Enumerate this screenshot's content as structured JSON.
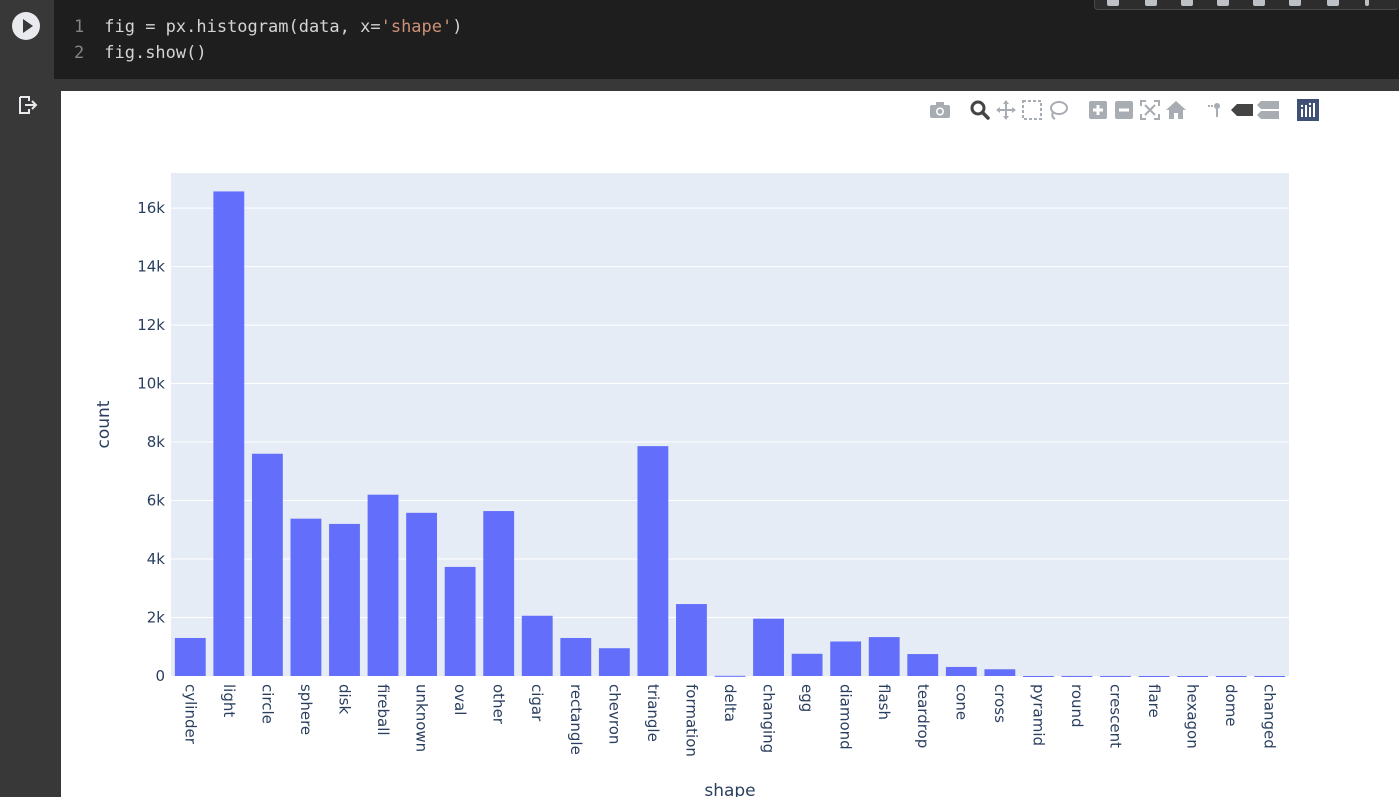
{
  "code_cell": {
    "lines": [
      {
        "num": "1",
        "pre": "fig = px.histogram(data, x=",
        "str": "'shape'",
        "post": ")"
      },
      {
        "num": "2",
        "pre": "fig.show()",
        "str": "",
        "post": ""
      }
    ]
  },
  "modebar": {
    "icons": [
      "camera-icon",
      "zoom-icon",
      "pan-icon",
      "box-select-icon",
      "lasso-select-icon",
      "zoom-in-icon",
      "zoom-out-icon",
      "autoscale-icon",
      "reset-axes-icon",
      "spike-lines-icon",
      "hover-closest-icon",
      "hover-compare-icon",
      "plotly-logo-icon"
    ]
  },
  "colors": {
    "bar": "#636efa",
    "plot_bg": "#e5ecf6",
    "grid": "#ffffff",
    "text": "#2a3f5f"
  },
  "chart_data": {
    "type": "bar",
    "xlabel": "shape",
    "ylabel": "count",
    "ylim": [
      0,
      17200
    ],
    "yticks": [
      0,
      2000,
      4000,
      6000,
      8000,
      10000,
      12000,
      14000,
      16000
    ],
    "ytick_labels": [
      "0",
      "2k",
      "4k",
      "6k",
      "8k",
      "10k",
      "12k",
      "14k",
      "16k"
    ],
    "grid": true,
    "categories": [
      "cylinder",
      "light",
      "circle",
      "sphere",
      "disk",
      "fireball",
      "unknown",
      "oval",
      "other",
      "cigar",
      "rectangle",
      "chevron",
      "triangle",
      "formation",
      "delta",
      "changing",
      "egg",
      "diamond",
      "flash",
      "teardrop",
      "cone",
      "cross",
      "pyramid",
      "round",
      "crescent",
      "flare",
      "hexagon",
      "dome",
      "changed"
    ],
    "values": [
      1300,
      16570,
      7600,
      5380,
      5200,
      6200,
      5580,
      3730,
      5640,
      2060,
      1300,
      950,
      7860,
      2460,
      7,
      1960,
      760,
      1180,
      1330,
      750,
      310,
      230,
      1,
      2,
      2,
      1,
      1,
      1,
      1
    ]
  }
}
